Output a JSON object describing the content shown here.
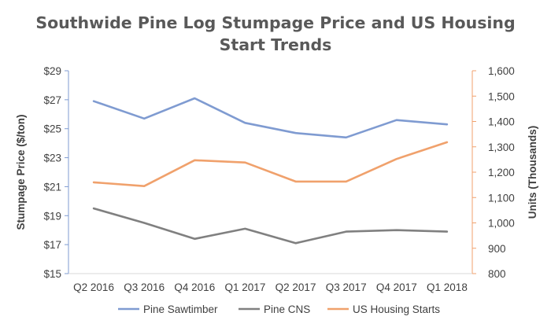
{
  "chart_data": {
    "type": "line",
    "title": "Southwide Pine Log Stumpage Price and US Housing Start Trends",
    "title_lines": [
      "Southwide Pine Log Stumpage Price and US Housing",
      "Start Trends"
    ],
    "categories": [
      "Q2 2016",
      "Q3 2016",
      "Q4 2016",
      "Q1 2017",
      "Q2 2017",
      "Q3 2017",
      "Q4 2017",
      "Q1 2018"
    ],
    "y_left": {
      "label": "Stumpage Price ($/ton)",
      "range": [
        15,
        29
      ],
      "ticks": [
        15,
        17,
        19,
        21,
        23,
        25,
        27,
        29
      ],
      "tick_labels": [
        "$15",
        "$17",
        "$19",
        "$21",
        "$23",
        "$25",
        "$27",
        "$29"
      ]
    },
    "y_right": {
      "label": "Units (Thousands)",
      "range": [
        800,
        1600
      ],
      "ticks": [
        800,
        900,
        1000,
        1100,
        1200,
        1300,
        1400,
        1500,
        1600
      ],
      "tick_labels": [
        "800",
        "900",
        "1,000",
        "1,100",
        "1,200",
        "1,300",
        "1,400",
        "1,500",
        "1,600"
      ]
    },
    "series": [
      {
        "name": "Pine Sawtimber",
        "axis": "left",
        "color": "#7f9bd1",
        "values": [
          26.9,
          25.7,
          27.1,
          25.4,
          24.7,
          24.4,
          25.6,
          25.3
        ]
      },
      {
        "name": "Pine CNS",
        "axis": "left",
        "color": "#808080",
        "values": [
          19.5,
          18.5,
          17.4,
          18.1,
          17.1,
          17.9,
          18.0,
          17.9
        ]
      },
      {
        "name": "US Housing Starts",
        "axis": "right",
        "color": "#f0a16c",
        "values": [
          1160,
          1145,
          1247,
          1238,
          1163,
          1163,
          1252,
          1318
        ]
      }
    ],
    "grid": false,
    "legend": "bottom"
  }
}
